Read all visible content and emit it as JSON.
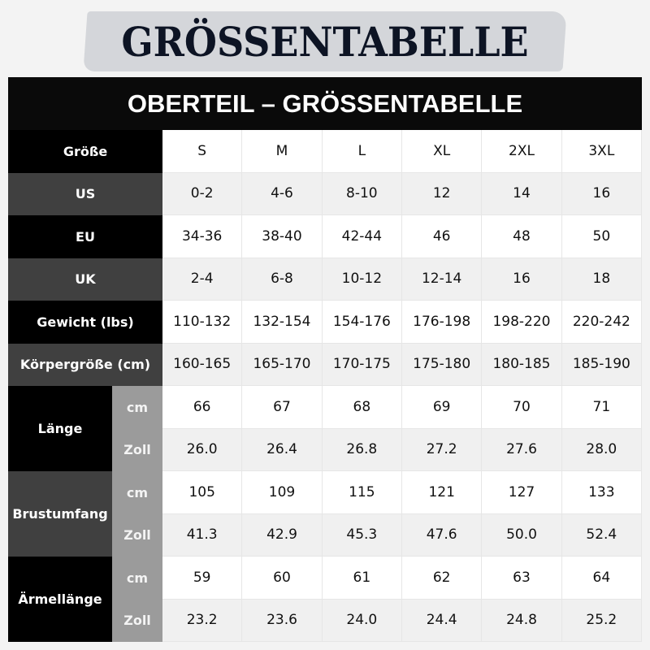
{
  "title": "GRÖSSENTABELLE",
  "table_title": "OBERTEIL – GRÖSSENTABELLE",
  "colors": {
    "dark_row": "#000000",
    "gray_row": "#404040",
    "sub_label": "#9b9b9b",
    "alt_cell": "#f0f0f0"
  },
  "simple_rows": [
    {
      "label": "Größe",
      "values": [
        "S",
        "M",
        "L",
        "XL",
        "2XL",
        "3XL"
      ]
    },
    {
      "label": "US",
      "values": [
        "0-2",
        "4-6",
        "8-10",
        "12",
        "14",
        "16"
      ]
    },
    {
      "label": "EU",
      "values": [
        "34-36",
        "38-40",
        "42-44",
        "46",
        "48",
        "50"
      ]
    },
    {
      "label": "UK",
      "values": [
        "2-4",
        "6-8",
        "10-12",
        "12-14",
        "16",
        "18"
      ]
    },
    {
      "label": "Gewicht (lbs)",
      "values": [
        "110-132",
        "132-154",
        "154-176",
        "176-198",
        "198-220",
        "220-242"
      ]
    },
    {
      "label": "Körpergröße  (cm)",
      "values": [
        "160-165",
        "165-170",
        "170-175",
        "175-180",
        "180-185",
        "185-190"
      ]
    }
  ],
  "measure_rows": [
    {
      "label": "Länge",
      "sub": [
        {
          "unit": "cm",
          "values": [
            "66",
            "67",
            "68",
            "69",
            "70",
            "71"
          ]
        },
        {
          "unit": "Zoll",
          "values": [
            "26.0",
            "26.4",
            "26.8",
            "27.2",
            "27.6",
            "28.0"
          ]
        }
      ]
    },
    {
      "label": "Brustumfang",
      "sub": [
        {
          "unit": "cm",
          "values": [
            "105",
            "109",
            "115",
            "121",
            "127",
            "133"
          ]
        },
        {
          "unit": "Zoll",
          "values": [
            "41.3",
            "42.9",
            "45.3",
            "47.6",
            "50.0",
            "52.4"
          ]
        }
      ]
    },
    {
      "label": "Ärmellänge",
      "sub": [
        {
          "unit": "cm",
          "values": [
            "59",
            "60",
            "61",
            "62",
            "63",
            "64"
          ]
        },
        {
          "unit": "Zoll",
          "values": [
            "23.2",
            "23.6",
            "24.0",
            "24.4",
            "24.8",
            "25.2"
          ]
        }
      ]
    }
  ]
}
